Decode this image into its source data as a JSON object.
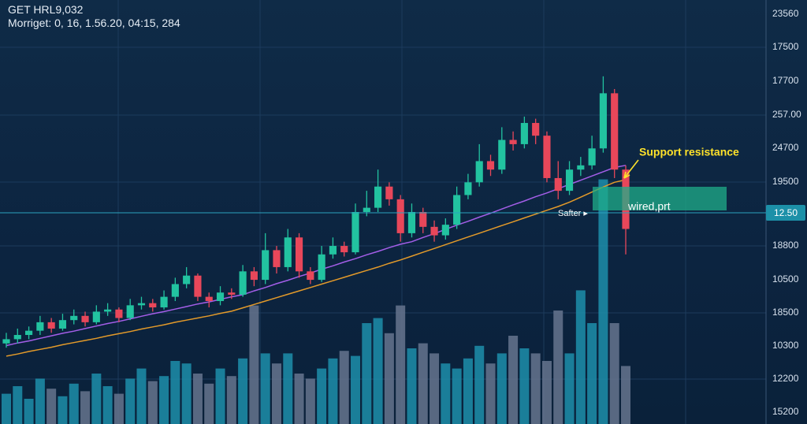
{
  "header": {
    "symbol": "GET HRL9,032",
    "info": "Morriget: 0, 16, 1.56.20, 04:15, 284"
  },
  "chart_data": {
    "type": "candlestick",
    "ylim": [
      0,
      100
    ],
    "price_labels": [
      "23560",
      "17500",
      "17700",
      "257.00",
      "24700",
      "19500",
      "18800",
      "10500",
      "18500",
      "10300",
      "12200",
      "15200"
    ],
    "price_tag": "12.50",
    "up_color": "#22c3a0",
    "down_color": "#e8475a",
    "candles": [
      [
        19,
        21.5,
        18,
        20
      ],
      [
        20,
        22.5,
        19,
        21
      ],
      [
        21,
        23,
        20,
        22
      ],
      [
        22,
        25.5,
        21,
        24
      ],
      [
        24,
        25,
        21.5,
        22.5
      ],
      [
        22.5,
        26,
        22,
        24.5
      ],
      [
        24.5,
        27,
        23.5,
        25.5
      ],
      [
        25.5,
        26.5,
        23,
        24
      ],
      [
        24,
        28,
        23.5,
        26.5
      ],
      [
        26.5,
        28.5,
        25.5,
        27
      ],
      [
        27,
        27.5,
        24,
        25
      ],
      [
        25,
        29.5,
        24.5,
        28
      ],
      [
        28,
        30,
        27,
        28.5
      ],
      [
        28.5,
        29.5,
        26.5,
        27.5
      ],
      [
        27.5,
        31.5,
        27,
        30
      ],
      [
        30,
        34.5,
        29,
        33
      ],
      [
        33,
        37,
        32,
        35
      ],
      [
        35,
        35.5,
        29,
        30
      ],
      [
        30,
        31,
        27.5,
        29
      ],
      [
        29,
        32.5,
        28,
        31
      ],
      [
        31,
        32,
        29.5,
        30.5
      ],
      [
        30.5,
        37.5,
        30,
        36
      ],
      [
        36,
        37,
        32.5,
        34
      ],
      [
        34,
        45,
        33,
        41
      ],
      [
        41,
        42,
        35.5,
        37
      ],
      [
        37,
        46,
        36,
        44
      ],
      [
        44,
        45,
        34.5,
        36
      ],
      [
        36,
        37,
        33,
        34
      ],
      [
        34,
        42,
        33.5,
        40
      ],
      [
        40,
        44,
        39,
        42
      ],
      [
        42,
        43,
        39.5,
        40.5
      ],
      [
        40.5,
        52,
        40,
        50
      ],
      [
        50,
        55,
        49,
        51
      ],
      [
        51,
        60,
        50,
        56
      ],
      [
        56,
        57,
        51.5,
        53
      ],
      [
        53,
        54,
        43,
        45
      ],
      [
        45,
        52,
        44,
        50
      ],
      [
        50,
        51,
        45,
        46.5
      ],
      [
        46.5,
        48,
        43,
        44.5
      ],
      [
        44.5,
        48.5,
        43.5,
        47
      ],
      [
        47,
        56,
        46,
        54
      ],
      [
        54,
        59,
        53,
        57
      ],
      [
        57,
        66,
        56,
        62
      ],
      [
        62,
        63.5,
        58.5,
        60
      ],
      [
        60,
        70,
        59,
        67
      ],
      [
        67,
        69,
        64.5,
        66
      ],
      [
        66,
        72.5,
        65,
        71
      ],
      [
        71,
        72,
        66,
        68
      ],
      [
        68,
        69,
        57,
        58
      ],
      [
        58,
        62,
        53,
        55
      ],
      [
        55,
        62,
        54,
        60
      ],
      [
        60,
        63,
        58.5,
        61
      ],
      [
        61,
        68,
        60,
        65
      ],
      [
        65,
        82,
        64,
        78
      ],
      [
        78,
        79,
        58,
        60
      ],
      [
        60,
        61,
        40,
        46
      ]
    ],
    "volume_ylim": [
      0,
      100
    ],
    "volume_up_color": "#1d8eaa",
    "volume_down_color": "#66748e",
    "volumes": [
      12,
      15,
      10,
      18,
      14,
      11,
      16,
      13,
      20,
      15,
      12,
      18,
      22,
      17,
      19,
      25,
      24,
      20,
      16,
      22,
      19,
      26,
      47,
      28,
      24,
      28,
      20,
      18,
      22,
      26,
      29,
      27,
      40,
      42,
      36,
      47,
      30,
      32,
      28,
      24,
      22,
      26,
      31,
      24,
      28,
      35,
      30,
      28,
      25,
      45,
      28,
      53,
      40,
      97,
      40,
      23
    ],
    "moving_averages": [
      {
        "color": "#a45ee8",
        "values": [
          18.5,
          19.1,
          19.6,
          20.2,
          20.8,
          21.4,
          21.9,
          22.5,
          23.1,
          23.7,
          24.2,
          24.8,
          25.4,
          26,
          26.5,
          27.1,
          27.7,
          28.3,
          28.8,
          29.4,
          30,
          30.5,
          31.4,
          32.2,
          33.1,
          33.9,
          34.8,
          35.6,
          36.5,
          37.3,
          38.2,
          39,
          39.9,
          40.7,
          41.6,
          42.4,
          43,
          44,
          44.9,
          45.9,
          46.9,
          47.8,
          48.8,
          49.7,
          50.7,
          51.7,
          52.6,
          53.6,
          54.5,
          55.5,
          56.5,
          57.5,
          58.5,
          59.5,
          60.5,
          61
        ]
      },
      {
        "color": "#e39a2a",
        "values": [
          16,
          16.5,
          17.1,
          17.6,
          18.1,
          18.7,
          19.2,
          19.7,
          20.2,
          20.8,
          21.3,
          21.8,
          22.4,
          22.9,
          23.4,
          24,
          24.5,
          25,
          25.5,
          26.1,
          26.6,
          27.4,
          28.2,
          29,
          29.8,
          30.6,
          31.4,
          32.2,
          33,
          33.8,
          34.6,
          35.4,
          36.2,
          37,
          37.9,
          38.7,
          39.6,
          40.5,
          41.4,
          42.3,
          43.2,
          44.1,
          45,
          45.9,
          46.8,
          47.7,
          48.6,
          49.5,
          50.4,
          51.3,
          52.3,
          53.5,
          54.7,
          55.9,
          57,
          57.6
        ]
      }
    ],
    "annotations": {
      "support": "Support resistance",
      "zone": "wired,prt",
      "marker": "Safter ▸"
    }
  }
}
